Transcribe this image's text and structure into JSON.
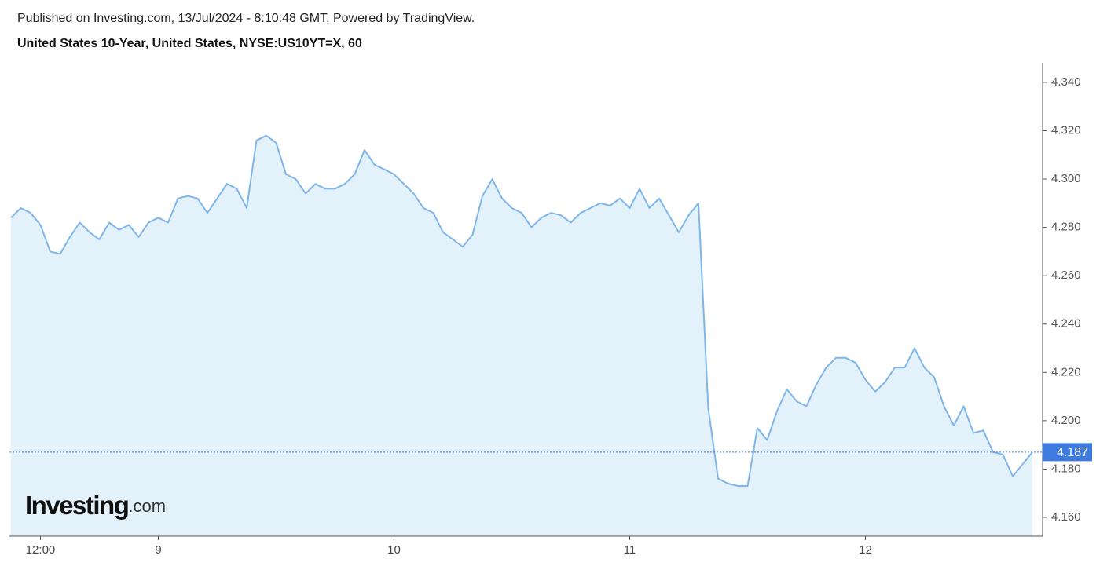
{
  "chart_data": {
    "type": "area",
    "published": "Published on Investing.com, 13/Jul/2024 - 8:10:48 GMT, Powered by TradingView.",
    "title": "United States 10-Year, United States, NYSE:US10YT=X, 60",
    "watermark_brand": "Investing",
    "watermark_suffix": ".com",
    "color": "#7fb6ea",
    "fill": "#e3f1fb",
    "x": [
      0,
      1,
      2,
      3,
      4,
      5,
      6,
      7,
      8,
      9,
      10,
      11,
      12,
      13,
      14,
      15,
      16,
      17,
      18,
      19,
      20,
      21,
      22,
      23,
      24,
      25,
      26,
      27,
      28,
      29,
      30,
      31,
      32,
      33,
      34,
      35,
      36,
      37,
      38,
      39,
      40,
      41,
      42,
      43,
      44,
      45,
      46,
      47,
      48,
      49,
      50,
      51,
      52,
      53,
      54,
      55,
      56,
      57,
      58,
      59,
      60,
      61,
      62,
      63,
      64,
      65,
      66,
      67,
      68,
      69,
      70,
      71,
      72,
      73,
      74,
      75,
      76,
      77,
      78,
      79,
      80,
      81,
      82,
      83,
      84,
      85,
      86,
      87,
      88,
      89,
      90,
      91,
      92,
      93,
      94,
      95,
      96,
      97,
      98,
      99,
      100,
      101,
      102,
      103,
      104
    ],
    "values": [
      4.284,
      4.288,
      4.286,
      4.281,
      4.27,
      4.269,
      4.276,
      4.282,
      4.278,
      4.275,
      4.282,
      4.279,
      4.281,
      4.276,
      4.282,
      4.284,
      4.282,
      4.292,
      4.293,
      4.292,
      4.286,
      4.292,
      4.298,
      4.296,
      4.288,
      4.316,
      4.318,
      4.315,
      4.302,
      4.3,
      4.294,
      4.298,
      4.296,
      4.296,
      4.298,
      4.302,
      4.312,
      4.306,
      4.304,
      4.302,
      4.298,
      4.294,
      4.288,
      4.286,
      4.278,
      4.275,
      4.272,
      4.277,
      4.293,
      4.3,
      4.292,
      4.288,
      4.286,
      4.28,
      4.284,
      4.286,
      4.285,
      4.282,
      4.286,
      4.288,
      4.29,
      4.289,
      4.292,
      4.288,
      4.296,
      4.288,
      4.292,
      4.285,
      4.278,
      4.285,
      4.29,
      4.205,
      4.176,
      4.174,
      4.173,
      4.173,
      4.197,
      4.192,
      4.204,
      4.213,
      4.208,
      4.206,
      4.215,
      4.222,
      4.226,
      4.226,
      4.224,
      4.217,
      4.212,
      4.216,
      4.222,
      4.222,
      4.23,
      4.222,
      4.218,
      4.206,
      4.198,
      4.206,
      4.195,
      4.196,
      4.187,
      4.186,
      4.177,
      4.182,
      4.187
    ],
    "xlim": [
      -0.16,
      105.04
    ],
    "xticks": [
      {
        "value": 3,
        "label": "12:00"
      },
      {
        "value": 15,
        "label": "9"
      },
      {
        "value": 39,
        "label": "10"
      },
      {
        "value": 63,
        "label": "11"
      },
      {
        "value": 87,
        "label": "12"
      }
    ],
    "ylim": [
      4.1522,
      4.3481
    ],
    "yticks": [
      {
        "value": 4.16,
        "label": "4.160"
      },
      {
        "value": 4.18,
        "label": "4.180"
      },
      {
        "value": 4.2,
        "label": "4.200"
      },
      {
        "value": 4.22,
        "label": "4.220"
      },
      {
        "value": 4.24,
        "label": "4.240"
      },
      {
        "value": 4.26,
        "label": "4.260"
      },
      {
        "value": 4.28,
        "label": "4.280"
      },
      {
        "value": 4.3,
        "label": "4.300"
      },
      {
        "value": 4.32,
        "label": "4.320"
      },
      {
        "value": 4.34,
        "label": "4.340"
      }
    ],
    "last_price_color": "#3d7be0"
  }
}
